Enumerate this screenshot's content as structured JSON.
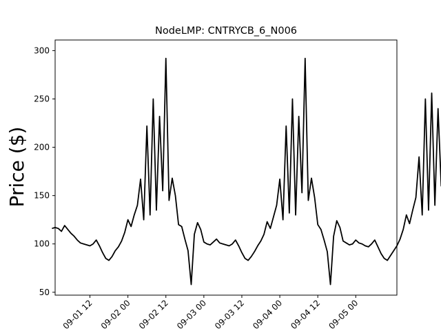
{
  "chart_data": {
    "type": "line",
    "title": "NodeLMP: CNTRYCB_6_N006",
    "xlabel": "",
    "ylabel": "Price ($)",
    "x_start": "2025-09-01 00:00",
    "x_step_hours": 1,
    "xlim": [
      "2025-09-01 01:00",
      "2025-09-05 13:00"
    ],
    "ylim": [
      47,
      311
    ],
    "yticks": [
      50,
      100,
      150,
      200,
      250,
      300
    ],
    "xticks": [
      {
        "value": "2025-09-01 12:00",
        "label": "09-01 12"
      },
      {
        "value": "2025-09-02 00:00",
        "label": "09-02 00"
      },
      {
        "value": "2025-09-02 12:00",
        "label": "09-02 12"
      },
      {
        "value": "2025-09-03 00:00",
        "label": "09-03 00"
      },
      {
        "value": "2025-09-03 12:00",
        "label": "09-03 12"
      },
      {
        "value": "2025-09-04 00:00",
        "label": "09-04 00"
      },
      {
        "value": "2025-09-04 12:00",
        "label": "09-04 12"
      },
      {
        "value": "2025-09-05 00:00",
        "label": "09-05 00"
      }
    ],
    "series": [
      {
        "name": "",
        "color": "#000000",
        "values": [
          116,
          117,
          116,
          113,
          119,
          115,
          111,
          108,
          104,
          101,
          100,
          99,
          98,
          100,
          104,
          98,
          91,
          85,
          83,
          87,
          93,
          97,
          103,
          112,
          125,
          118,
          130,
          140,
          167,
          125,
          222,
          130,
          250,
          135,
          232,
          155,
          292,
          145,
          168,
          150,
          120,
          118,
          105,
          93,
          58,
          110,
          122,
          115,
          102,
          100,
          99,
          102,
          105,
          101,
          100,
          99,
          98,
          100,
          104,
          98,
          91,
          85,
          83,
          87,
          92,
          98,
          103,
          110,
          123,
          116,
          128,
          140,
          167,
          125,
          222,
          132,
          250,
          130,
          232,
          153,
          292,
          145,
          168,
          148,
          120,
          115,
          104,
          92,
          58,
          108,
          124,
          117,
          103,
          101,
          99,
          100,
          104,
          101,
          100,
          98,
          97,
          100,
          104,
          97,
          90,
          85,
          83,
          88,
          93,
          98,
          105,
          115,
          130,
          121,
          135,
          148,
          190,
          130,
          250,
          135,
          256,
          140,
          240,
          160,
          300,
          150,
          205,
          145,
          140,
          118,
          164,
          100,
          90,
          85,
          123,
          118,
          108,
          110,
          120,
          114,
          105,
          100,
          102,
          108,
          112,
          106,
          100,
          98,
          97,
          100,
          104,
          98,
          91,
          85,
          83,
          88,
          93,
          98,
          103,
          112,
          128,
          120,
          133,
          145,
          190,
          128,
          250,
          135,
          256,
          138,
          240,
          158,
          300,
          150,
          144,
          138,
          128,
          125,
          164,
          98,
          220,
          88,
          84,
          83
        ]
      }
    ]
  }
}
